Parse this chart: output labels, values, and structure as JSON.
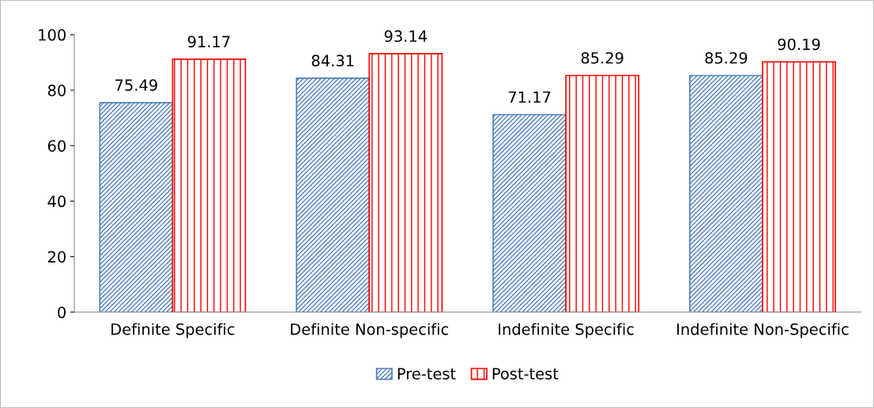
{
  "chart_data": {
    "type": "bar",
    "categories": [
      "Definite Specific",
      "Definite Non-specific",
      "Indefinite Specific",
      "Indefinite Non-Specific"
    ],
    "series": [
      {
        "name": "Pre-test",
        "color": "#4f81bd",
        "values": [
          75.49,
          84.31,
          71.17,
          85.29
        ]
      },
      {
        "name": "Post-test",
        "color": "#ff0000",
        "values": [
          91.17,
          93.14,
          85.29,
          90.19
        ]
      }
    ],
    "ylim": [
      0,
      100
    ],
    "yticks": [
      0,
      20,
      40,
      60,
      80,
      100
    ],
    "data_labels": true,
    "legend": "bottom",
    "grid": false
  }
}
